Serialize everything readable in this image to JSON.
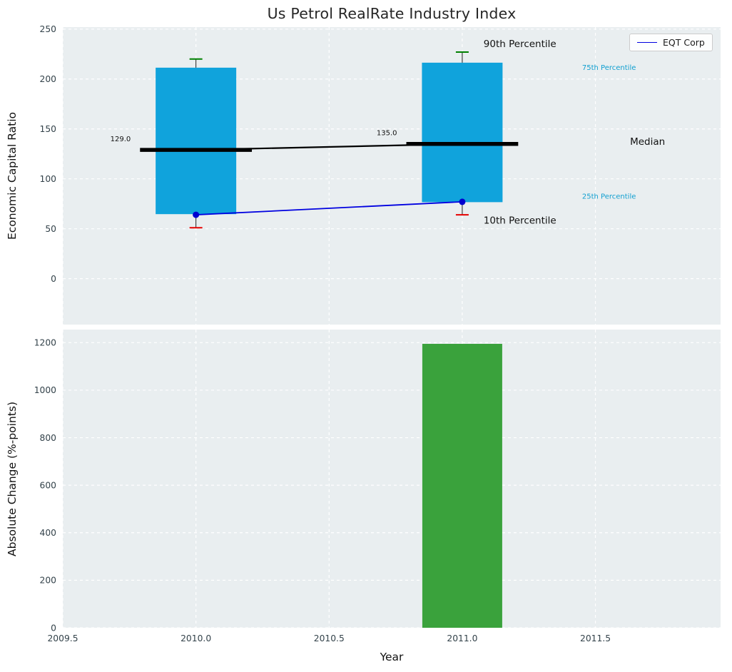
{
  "title": "Us Petrol RealRate Industry Index",
  "legend": {
    "label": "EQT Corp"
  },
  "colors": {
    "box_fill": "#10a3dc",
    "bar_fill": "#3aa23c",
    "cap_high": "#008000",
    "cap_low": "#e50000",
    "eqt_line": "#0000e0",
    "eqt_dot": "#0000d0",
    "median_line": "#000000",
    "percentile_label": "#109fd0",
    "panel_bg": "#e9eef0",
    "grid": "#ffffff",
    "tick_label": "#33424a",
    "text": "#111111"
  },
  "chart_data": [
    {
      "type": "boxplot",
      "title": "Us Petrol RealRate Industry Index",
      "ylabel": "Economic Capital Ratio",
      "ylim": [
        -46,
        252
      ],
      "yticks": [
        {
          "v": 0,
          "label": "0"
        },
        {
          "v": 50,
          "label": "50"
        },
        {
          "v": 100,
          "label": "100"
        },
        {
          "v": 150,
          "label": "150"
        },
        {
          "v": 200,
          "label": "200"
        },
        {
          "v": 250,
          "label": "250"
        }
      ],
      "legend_entries": [
        "EQT Corp"
      ],
      "boxes": [
        {
          "x": 2010,
          "p10": 51,
          "p25": 65,
          "median": 129,
          "p75": 211,
          "p90": 220,
          "eqt": 64,
          "median_label": "129.0"
        },
        {
          "x": 2011,
          "p10": 64,
          "p25": 77,
          "median": 135,
          "p75": 216,
          "p90": 227,
          "eqt": 77,
          "median_label": "135.0"
        }
      ],
      "annotations": [
        {
          "text": "90th Percentile",
          "x": 2011.08,
          "y": 232,
          "size": 13.5,
          "color": "#111111"
        },
        {
          "text": "10th Percentile",
          "x": 2011.08,
          "y": 55,
          "size": 13.5,
          "color": "#111111"
        },
        {
          "text": "75th Percentile",
          "x": 2011.45,
          "y": 209,
          "size": 10,
          "color": "#109fd0"
        },
        {
          "text": "25th Percentile",
          "x": 2011.45,
          "y": 80,
          "size": 10,
          "color": "#109fd0"
        },
        {
          "text": "Median",
          "x": 2011.63,
          "y": 134,
          "size": 13.5,
          "color": "#111111"
        }
      ]
    },
    {
      "type": "bar",
      "xlabel": "Year",
      "ylabel": "Absolute Change (%-points)",
      "xlim": [
        2009.5,
        2011.97
      ],
      "ylim": [
        0,
        1255
      ],
      "bar_width": 0.3,
      "yticks": [
        {
          "v": 0,
          "label": "0"
        },
        {
          "v": 200,
          "label": "200"
        },
        {
          "v": 400,
          "label": "400"
        },
        {
          "v": 600,
          "label": "600"
        },
        {
          "v": 800,
          "label": "800"
        },
        {
          "v": 1000,
          "label": "1000"
        },
        {
          "v": 1200,
          "label": "1200"
        }
      ],
      "xticks": [
        {
          "v": 2009.5,
          "label": "2009.5"
        },
        {
          "v": 2010.0,
          "label": "2010.0"
        },
        {
          "v": 2010.5,
          "label": "2010.5"
        },
        {
          "v": 2011.0,
          "label": "2011.0"
        },
        {
          "v": 2011.5,
          "label": "2011.5"
        }
      ],
      "bars": [
        {
          "x": 2011,
          "value": 1195
        }
      ]
    }
  ]
}
